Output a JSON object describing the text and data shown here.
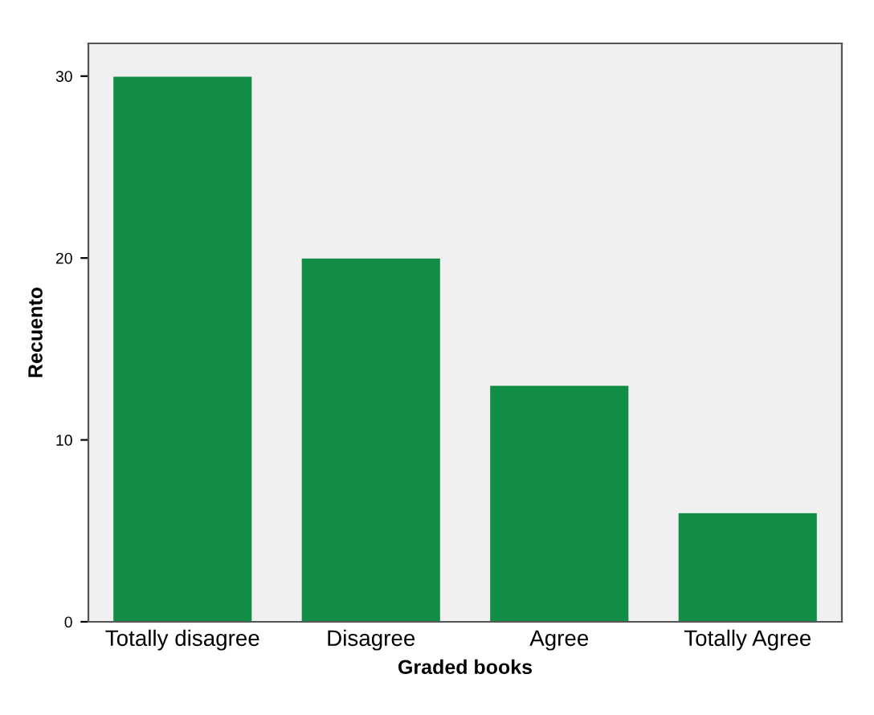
{
  "chart_data": {
    "type": "bar",
    "xlabel": "Graded books",
    "ylabel": "Recuento",
    "categories": [
      "Totally disagree",
      "Disagree",
      "Agree",
      "Totally Agree"
    ],
    "values": [
      30,
      20,
      13,
      6
    ],
    "color": "#118d45",
    "ylim": [
      0,
      31.8
    ],
    "yticks": [
      0,
      10,
      20,
      30
    ],
    "grid": false,
    "legend": false
  }
}
